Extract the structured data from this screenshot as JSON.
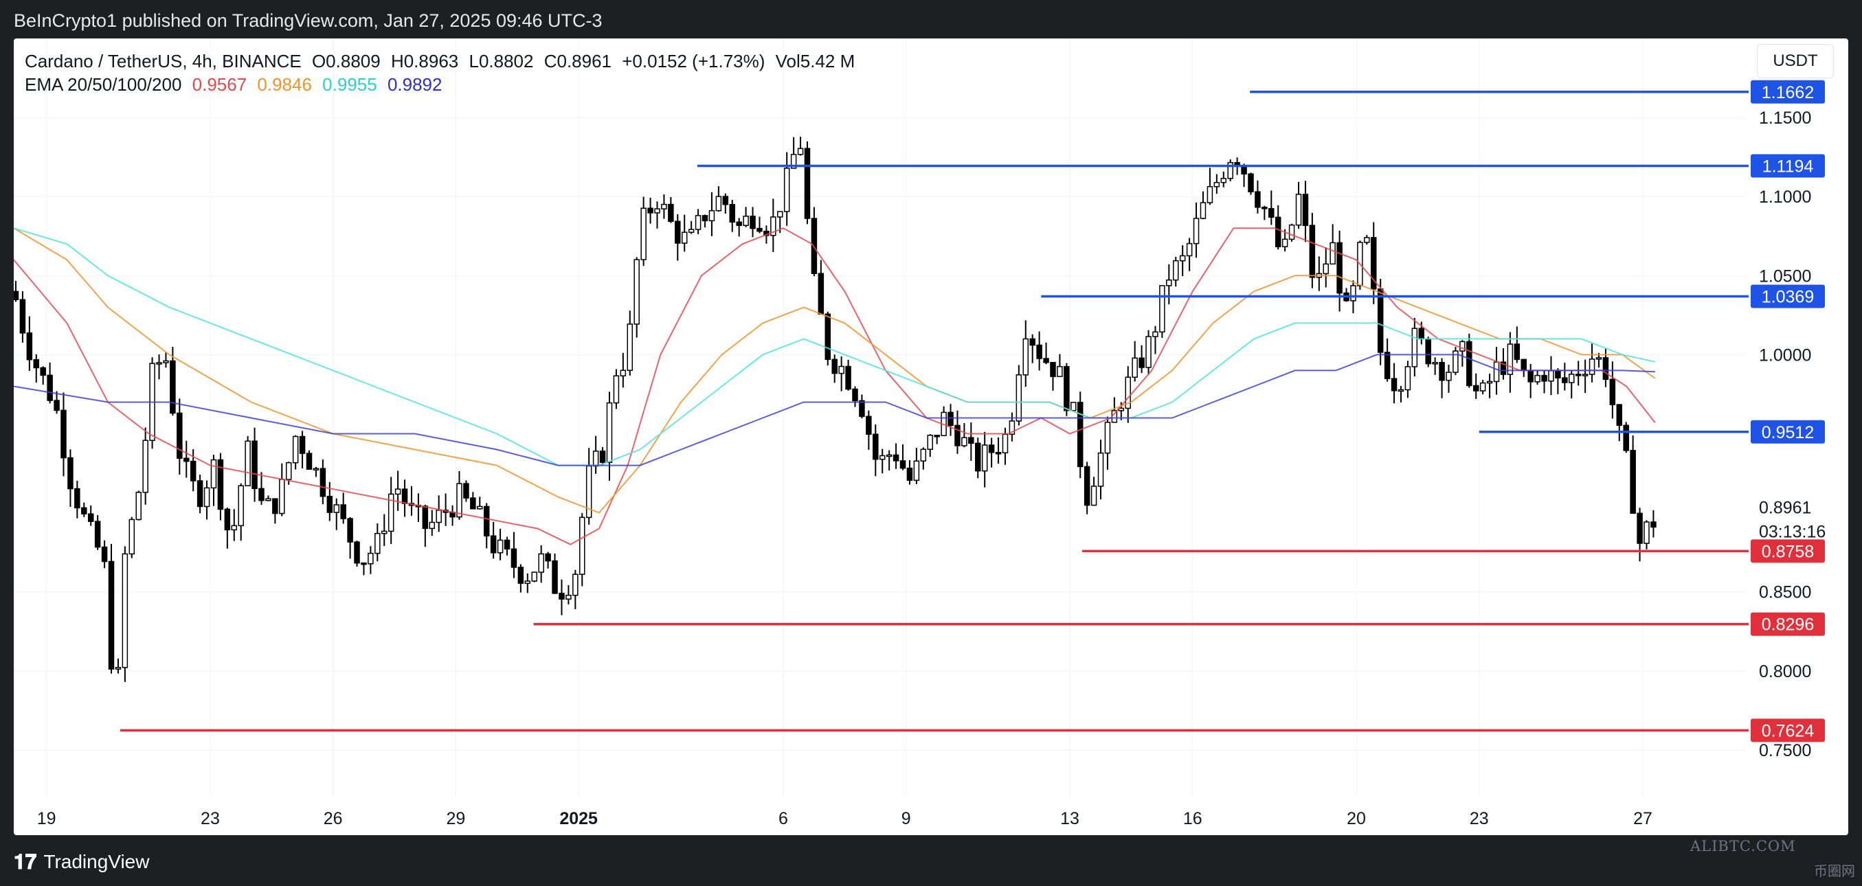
{
  "header": {
    "published": "BeInCrypto1 published on TradingView.com, Jan 27, 2025 09:46 UTC-3"
  },
  "legend": {
    "symbol": "Cardano / TetherUS, 4h, BINANCE",
    "open": "O0.8809",
    "high": "H0.8963",
    "low": "L0.8802",
    "close": "C0.8961",
    "change": "+0.0152 (+1.73%)",
    "volume": "Vol5.42 M",
    "ema_label": "EMA 20/50/100/200",
    "ema20": "0.9567",
    "ema50": "0.9846",
    "ema100": "0.9955",
    "ema200": "0.9892"
  },
  "currency_button": "USDT",
  "footer": {
    "brand": "TradingView",
    "watermark": "ALIBTC.COM",
    "watermark2": "币圈网"
  },
  "colors": {
    "ema20": "#e5484d",
    "ema50": "#f0932b",
    "ema100": "#4de3e0",
    "ema200": "#3b3fd6",
    "resistance": "#1e53e5",
    "support": "#e0303c",
    "candle": "#000000"
  },
  "chart_data": {
    "type": "candlestick",
    "title": "",
    "ylim": [
      0.72,
      1.2
    ],
    "y_ticks": [
      "1.1500",
      "1.1000",
      "1.0500",
      "1.0000",
      "0.8500",
      "0.8000",
      "0.7500"
    ],
    "y_tick_values": [
      1.15,
      1.1,
      1.05,
      1.0,
      0.85,
      0.8,
      0.75
    ],
    "x_ticks": [
      "19",
      "23",
      "26",
      "29",
      "2025",
      "6",
      "9",
      "13",
      "16",
      "20",
      "23",
      "27"
    ],
    "x_tick_days": [
      0,
      4,
      7,
      10,
      13,
      18,
      21,
      25,
      28,
      32,
      35,
      39
    ],
    "x_range_days": [
      -0.8,
      41.5
    ],
    "last_price": "0.8961",
    "countdown": "03:13:16",
    "resistance_levels": [
      {
        "label": "1.1662",
        "value": 1.1662,
        "from_day": 29.4
      },
      {
        "label": "1.1194",
        "value": 1.1194,
        "from_day": 15.9
      },
      {
        "label": "1.0369",
        "value": 1.0369,
        "from_day": 24.3
      },
      {
        "label": "0.9512",
        "value": 0.9512,
        "from_day": 35.0
      }
    ],
    "support_levels": [
      {
        "label": "0.8758",
        "value": 0.8758,
        "from_day": 25.3
      },
      {
        "label": "0.8296",
        "value": 0.8296,
        "from_day": 11.9
      },
      {
        "label": "0.7624",
        "value": 0.7624,
        "from_day": 1.8
      }
    ],
    "price_path": [
      [
        -0.8,
        1.04
      ],
      [
        -0.5,
        1.01
      ],
      [
        -0.2,
        0.99
      ],
      [
        0.2,
        0.97
      ],
      [
        0.6,
        0.92
      ],
      [
        1.0,
        0.89
      ],
      [
        1.4,
        0.87
      ],
      [
        1.7,
        0.77
      ],
      [
        1.9,
        0.87
      ],
      [
        2.3,
        0.92
      ],
      [
        2.6,
        0.99
      ],
      [
        2.9,
        1.0
      ],
      [
        3.3,
        0.93
      ],
      [
        3.7,
        0.91
      ],
      [
        4.1,
        0.93
      ],
      [
        4.5,
        0.88
      ],
      [
        4.9,
        0.94
      ],
      [
        5.3,
        0.9
      ],
      [
        5.7,
        0.91
      ],
      [
        6.1,
        0.95
      ],
      [
        6.5,
        0.93
      ],
      [
        6.9,
        0.91
      ],
      [
        7.3,
        0.89
      ],
      [
        7.7,
        0.87
      ],
      [
        8.1,
        0.88
      ],
      [
        8.5,
        0.92
      ],
      [
        8.9,
        0.9
      ],
      [
        9.3,
        0.89
      ],
      [
        9.7,
        0.9
      ],
      [
        10.1,
        0.91
      ],
      [
        10.5,
        0.9
      ],
      [
        10.9,
        0.88
      ],
      [
        11.3,
        0.87
      ],
      [
        11.7,
        0.86
      ],
      [
        12.1,
        0.87
      ],
      [
        12.5,
        0.85
      ],
      [
        12.9,
        0.86
      ],
      [
        13.2,
        0.92
      ],
      [
        13.6,
        0.94
      ],
      [
        13.9,
        0.99
      ],
      [
        14.2,
        1.0
      ],
      [
        14.5,
        1.08
      ],
      [
        14.9,
        1.1
      ],
      [
        15.3,
        1.08
      ],
      [
        15.7,
        1.07
      ],
      [
        16.1,
        1.09
      ],
      [
        16.5,
        1.1
      ],
      [
        16.9,
        1.08
      ],
      [
        17.3,
        1.09
      ],
      [
        17.7,
        1.08
      ],
      [
        18.1,
        1.11
      ],
      [
        18.4,
        1.14
      ],
      [
        18.7,
        1.05
      ],
      [
        19.1,
        1.0
      ],
      [
        19.5,
        0.99
      ],
      [
        19.9,
        0.97
      ],
      [
        20.3,
        0.93
      ],
      [
        20.7,
        0.94
      ],
      [
        21.1,
        0.92
      ],
      [
        21.5,
        0.94
      ],
      [
        21.9,
        0.96
      ],
      [
        22.3,
        0.95
      ],
      [
        22.7,
        0.93
      ],
      [
        23.1,
        0.94
      ],
      [
        23.5,
        0.95
      ],
      [
        23.9,
        1.02
      ],
      [
        24.3,
        1.0
      ],
      [
        24.7,
        0.99
      ],
      [
        25.1,
        0.96
      ],
      [
        25.4,
        0.91
      ],
      [
        25.8,
        0.94
      ],
      [
        26.2,
        0.97
      ],
      [
        26.6,
        0.99
      ],
      [
        27.0,
        1.01
      ],
      [
        27.4,
        1.05
      ],
      [
        27.8,
        1.06
      ],
      [
        28.2,
        1.09
      ],
      [
        28.6,
        1.11
      ],
      [
        29.0,
        1.13
      ],
      [
        29.4,
        1.11
      ],
      [
        29.8,
        1.09
      ],
      [
        30.2,
        1.06
      ],
      [
        30.6,
        1.1
      ],
      [
        31.0,
        1.04
      ],
      [
        31.4,
        1.07
      ],
      [
        31.8,
        1.02
      ],
      [
        32.2,
        1.08
      ],
      [
        32.6,
        1.0
      ],
      [
        33.0,
        0.98
      ],
      [
        33.4,
        1.01
      ],
      [
        33.8,
        1.0
      ],
      [
        34.2,
        0.99
      ],
      [
        34.6,
        1.0
      ],
      [
        35.0,
        0.97
      ],
      [
        35.4,
        0.99
      ],
      [
        35.8,
        1.0
      ],
      [
        36.2,
        0.98
      ],
      [
        36.6,
        0.99
      ],
      [
        37.0,
        0.98
      ],
      [
        37.4,
        0.99
      ],
      [
        37.8,
        1.0
      ],
      [
        38.1,
        0.99
      ],
      [
        38.4,
        0.95
      ],
      [
        38.7,
        0.92
      ],
      [
        38.9,
        0.88
      ],
      [
        39.1,
        0.89
      ],
      [
        39.3,
        0.896
      ]
    ],
    "series": [
      {
        "name": "EMA 20",
        "points": [
          [
            -0.8,
            1.06
          ],
          [
            0.5,
            1.02
          ],
          [
            1.5,
            0.97
          ],
          [
            2.5,
            0.95
          ],
          [
            4.0,
            0.93
          ],
          [
            6.0,
            0.92
          ],
          [
            8.0,
            0.91
          ],
          [
            10.0,
            0.9
          ],
          [
            12.0,
            0.89
          ],
          [
            12.8,
            0.88
          ],
          [
            13.5,
            0.89
          ],
          [
            14.2,
            0.93
          ],
          [
            15.0,
            1.0
          ],
          [
            16.0,
            1.05
          ],
          [
            17.0,
            1.07
          ],
          [
            18.0,
            1.08
          ],
          [
            18.7,
            1.07
          ],
          [
            19.5,
            1.04
          ],
          [
            20.5,
            0.99
          ],
          [
            21.5,
            0.96
          ],
          [
            22.5,
            0.95
          ],
          [
            23.5,
            0.95
          ],
          [
            24.3,
            0.96
          ],
          [
            25.0,
            0.95
          ],
          [
            26.0,
            0.96
          ],
          [
            27.0,
            0.99
          ],
          [
            28.0,
            1.04
          ],
          [
            29.0,
            1.08
          ],
          [
            30.0,
            1.08
          ],
          [
            31.0,
            1.07
          ],
          [
            32.0,
            1.06
          ],
          [
            33.0,
            1.03
          ],
          [
            34.0,
            1.01
          ],
          [
            35.0,
            1.0
          ],
          [
            36.0,
            0.99
          ],
          [
            37.0,
            0.99
          ],
          [
            38.0,
            0.99
          ],
          [
            38.6,
            0.98
          ],
          [
            39.3,
            0.957
          ]
        ]
      },
      {
        "name": "EMA 50",
        "points": [
          [
            -0.8,
            1.08
          ],
          [
            0.5,
            1.06
          ],
          [
            1.5,
            1.03
          ],
          [
            3.0,
            1.0
          ],
          [
            5.0,
            0.97
          ],
          [
            7.0,
            0.95
          ],
          [
            9.0,
            0.94
          ],
          [
            11.0,
            0.93
          ],
          [
            12.5,
            0.91
          ],
          [
            13.5,
            0.9
          ],
          [
            14.5,
            0.93
          ],
          [
            15.5,
            0.97
          ],
          [
            16.5,
            1.0
          ],
          [
            17.5,
            1.02
          ],
          [
            18.5,
            1.03
          ],
          [
            19.5,
            1.02
          ],
          [
            20.5,
            1.0
          ],
          [
            21.5,
            0.98
          ],
          [
            22.5,
            0.97
          ],
          [
            23.5,
            0.97
          ],
          [
            24.5,
            0.97
          ],
          [
            25.5,
            0.96
          ],
          [
            26.5,
            0.97
          ],
          [
            27.5,
            0.99
          ],
          [
            28.5,
            1.02
          ],
          [
            29.5,
            1.04
          ],
          [
            30.5,
            1.05
          ],
          [
            31.5,
            1.05
          ],
          [
            32.5,
            1.04
          ],
          [
            33.5,
            1.03
          ],
          [
            34.5,
            1.02
          ],
          [
            35.5,
            1.01
          ],
          [
            36.5,
            1.01
          ],
          [
            37.5,
            1.0
          ],
          [
            38.5,
            1.0
          ],
          [
            39.3,
            0.985
          ]
        ]
      },
      {
        "name": "EMA 100",
        "points": [
          [
            -0.8,
            1.08
          ],
          [
            0.5,
            1.07
          ],
          [
            1.5,
            1.05
          ],
          [
            3.0,
            1.03
          ],
          [
            5.0,
            1.01
          ],
          [
            7.0,
            0.99
          ],
          [
            9.0,
            0.97
          ],
          [
            11.0,
            0.95
          ],
          [
            12.5,
            0.93
          ],
          [
            13.5,
            0.93
          ],
          [
            14.5,
            0.94
          ],
          [
            15.5,
            0.96
          ],
          [
            16.5,
            0.98
          ],
          [
            17.5,
            1.0
          ],
          [
            18.5,
            1.01
          ],
          [
            19.5,
            1.0
          ],
          [
            20.5,
            0.99
          ],
          [
            21.5,
            0.98
          ],
          [
            22.5,
            0.97
          ],
          [
            23.5,
            0.97
          ],
          [
            24.5,
            0.97
          ],
          [
            25.5,
            0.96
          ],
          [
            26.5,
            0.96
          ],
          [
            27.5,
            0.97
          ],
          [
            28.5,
            0.99
          ],
          [
            29.5,
            1.01
          ],
          [
            30.5,
            1.02
          ],
          [
            31.5,
            1.02
          ],
          [
            32.5,
            1.02
          ],
          [
            33.5,
            1.01
          ],
          [
            34.5,
            1.01
          ],
          [
            35.5,
            1.01
          ],
          [
            36.5,
            1.01
          ],
          [
            37.5,
            1.01
          ],
          [
            38.5,
            1.0
          ],
          [
            39.3,
            0.9955
          ]
        ]
      },
      {
        "name": "EMA 200",
        "points": [
          [
            -0.8,
            0.98
          ],
          [
            1.5,
            0.97
          ],
          [
            3.0,
            0.97
          ],
          [
            5.0,
            0.96
          ],
          [
            7.0,
            0.95
          ],
          [
            9.0,
            0.95
          ],
          [
            11.0,
            0.94
          ],
          [
            12.5,
            0.93
          ],
          [
            13.5,
            0.93
          ],
          [
            14.5,
            0.93
          ],
          [
            15.5,
            0.94
          ],
          [
            16.5,
            0.95
          ],
          [
            17.5,
            0.96
          ],
          [
            18.5,
            0.97
          ],
          [
            19.5,
            0.97
          ],
          [
            20.5,
            0.97
          ],
          [
            21.5,
            0.96
          ],
          [
            22.5,
            0.96
          ],
          [
            23.5,
            0.96
          ],
          [
            24.5,
            0.96
          ],
          [
            25.5,
            0.96
          ],
          [
            26.5,
            0.96
          ],
          [
            27.5,
            0.96
          ],
          [
            28.5,
            0.97
          ],
          [
            29.5,
            0.98
          ],
          [
            30.5,
            0.99
          ],
          [
            31.5,
            0.99
          ],
          [
            32.5,
            1.0
          ],
          [
            33.5,
            1.0
          ],
          [
            34.5,
            1.0
          ],
          [
            35.5,
            0.99
          ],
          [
            36.5,
            0.99
          ],
          [
            37.5,
            0.99
          ],
          [
            38.5,
            0.99
          ],
          [
            39.3,
            0.9892
          ]
        ]
      }
    ]
  }
}
